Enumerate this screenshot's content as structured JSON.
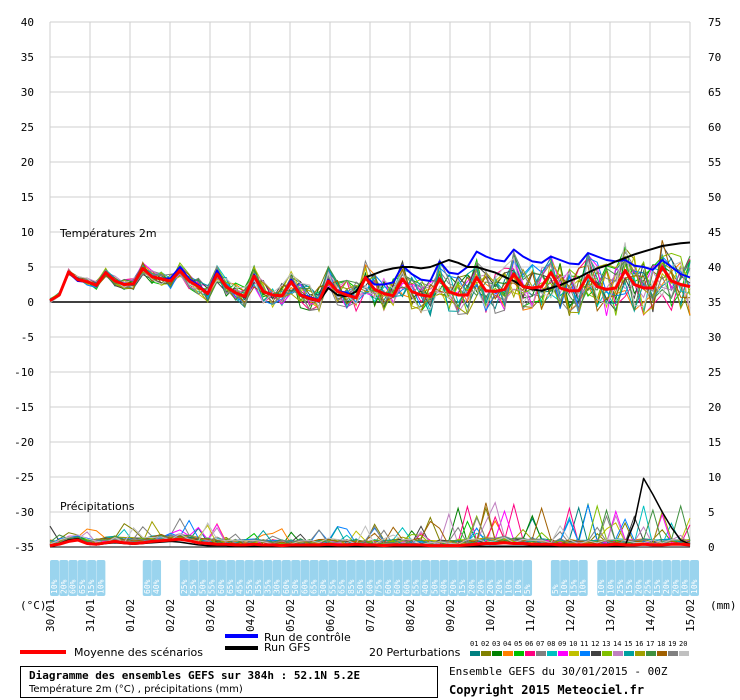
{
  "chart_data": {
    "type": "line",
    "title": "Diagramme des ensembles GEFS sur 384h : 52.1N 5.2E",
    "subtitle": "Température 2m (°C) , précipitations (mm)",
    "run_label": "Ensemble GEFS du 30/01/2015 - 00Z",
    "copyright": "Copyright 2015 Meteociel.fr",
    "panel_temp_label": "Températures 2m",
    "panel_precip_label": "Précipitations",
    "ylabel_left": "(°C)",
    "ylabel_right": "(mm)",
    "ylim_left": [
      -35,
      40
    ],
    "ylim_right": [
      0,
      75
    ],
    "y_ticks_left": [
      "40",
      "35",
      "30",
      "25",
      "20",
      "15",
      "10",
      "5",
      "0",
      "-5",
      "-10",
      "-15",
      "-20",
      "-25",
      "-30",
      "-35"
    ],
    "y_ticks_right": [
      "75",
      "70",
      "65",
      "60",
      "55",
      "50",
      "45",
      "40",
      "35",
      "30",
      "25",
      "20",
      "15",
      "10",
      "5",
      "0"
    ],
    "x_dates": [
      "30/01",
      "31/01",
      "01/02",
      "02/02",
      "03/02",
      "04/02",
      "05/02",
      "06/02",
      "07/02",
      "08/02",
      "09/02",
      "10/02",
      "11/02",
      "12/02",
      "13/02",
      "14/02",
      "15/02"
    ],
    "x_hours_step": 6,
    "snow_probabilities": [
      "10%",
      "20%",
      "60%",
      "65%",
      "15%",
      "10%",
      "",
      "",
      "",
      "",
      "60%",
      "40%",
      "",
      "",
      "25%",
      "25%",
      "50%",
      "55%",
      "60%",
      "65%",
      "45%",
      "55%",
      "35%",
      "35%",
      "30%",
      "60%",
      "50%",
      "60%",
      "65%",
      "30%",
      "55%",
      "65%",
      "85%",
      "50%",
      "60%",
      "75%",
      "60%",
      "60%",
      "60%",
      "55%",
      "40%",
      "50%",
      "40%",
      "20%",
      "15%",
      "20%",
      "20%",
      "20%",
      "20%",
      "10%",
      "10%",
      "5%",
      "",
      "",
      "5%",
      "10%",
      "15%",
      "10%",
      "",
      "10%",
      "10%",
      "25%",
      "15%",
      "20%",
      "25%",
      "15%",
      "20%",
      "20%",
      "10%",
      "10%"
    ],
    "legend": {
      "mean": "Moyenne des scénarios",
      "control": "Run de contrôle",
      "gfs": "Run GFS",
      "perturbations": "20 Perturbations",
      "perturbation_ids": [
        "01",
        "02",
        "03",
        "04",
        "05",
        "06",
        "07",
        "08",
        "09",
        "10",
        "11",
        "12",
        "13",
        "14",
        "15",
        "16",
        "17",
        "18",
        "19",
        "20"
      ]
    },
    "colors": {
      "mean": "#ff0000",
      "control": "#0000ff",
      "gfs": "#000000",
      "perturbations": [
        "#008080",
        "#808000",
        "#008000",
        "#ff8000",
        "#00c000",
        "#ff0080",
        "#808080",
        "#00c0c0",
        "#ff00ff",
        "#c0c000",
        "#0080ff",
        "#404040",
        "#80c000",
        "#c080c0",
        "#00a0a0",
        "#a0a000",
        "#409040",
        "#a06000",
        "#808080",
        "#c0c0c0"
      ]
    },
    "series_temp": {
      "mean": [
        0.2,
        1.0,
        4.3,
        3.2,
        2.9,
        2.4,
        4.2,
        3.0,
        2.5,
        2.6,
        4.8,
        3.6,
        3.3,
        3.0,
        4.5,
        3.0,
        2.2,
        1.2,
        4.0,
        2.2,
        1.3,
        0.8,
        3.7,
        1.5,
        1.0,
        0.9,
        2.9,
        1.0,
        0.5,
        0.2,
        3.0,
        1.5,
        1.0,
        0.6,
        3.5,
        1.8,
        1.2,
        0.9,
        3.3,
        1.5,
        1.0,
        0.8,
        3.3,
        1.5,
        1.0,
        1.0,
        3.5,
        1.6,
        1.5,
        1.8,
        4.0,
        2.2,
        2.0,
        2.2,
        4.2,
        2.0,
        1.6,
        1.6,
        3.8,
        2.2,
        1.8,
        2.0,
        4.5,
        2.5,
        2.0,
        2.0,
        5.0,
        3.0,
        2.5,
        2.2
      ],
      "control": [
        0.2,
        1.0,
        4.2,
        3.0,
        2.9,
        2.3,
        4.3,
        3.0,
        2.6,
        2.5,
        4.8,
        3.7,
        3.3,
        3.4,
        5.0,
        3.3,
        2.4,
        1.3,
        4.5,
        2.2,
        1.4,
        0.7,
        3.9,
        1.5,
        1.0,
        0.9,
        3.2,
        1.1,
        0.7,
        0.3,
        3.2,
        1.6,
        1.3,
        0.6,
        3.6,
        2.5,
        2.5,
        2.8,
        5.2,
        4.0,
        3.2,
        3.0,
        5.8,
        4.2,
        4.0,
        5.0,
        7.2,
        6.5,
        6.0,
        5.8,
        7.5,
        6.5,
        5.8,
        5.6,
        6.5,
        6.0,
        5.5,
        5.4,
        7.0,
        6.5,
        6.0,
        5.8,
        6.0,
        5.2,
        5.0,
        4.6,
        6.0,
        5.0,
        4.0,
        3.5
      ],
      "gfs": [
        0.2,
        1.0,
        4.3,
        3.3,
        2.9,
        2.4,
        4.2,
        3.0,
        2.5,
        2.5,
        4.7,
        3.6,
        3.2,
        3.0,
        4.4,
        3.0,
        2.2,
        1.2,
        3.9,
        2.1,
        1.3,
        0.7,
        3.6,
        1.4,
        1.0,
        0.8,
        2.8,
        0.9,
        0.4,
        0.1,
        2.0,
        1.0,
        0.8,
        1.5,
        3.5,
        4.0,
        4.5,
        4.8,
        5.0,
        5.0,
        4.8,
        5.0,
        5.5,
        6.0,
        5.6,
        5.0,
        5.0,
        4.6,
        4.2,
        3.6,
        3.0,
        2.2,
        1.8,
        1.6,
        2.0,
        2.4,
        3.0,
        3.5,
        4.2,
        4.8,
        5.2,
        5.8,
        6.3,
        6.8,
        7.2,
        7.6,
        8.0,
        8.2,
        8.4,
        8.5
      ]
    },
    "series_precip_mm": {
      "mean": [
        0.2,
        0.4,
        0.8,
        1.0,
        0.5,
        0.4,
        0.6,
        0.8,
        0.6,
        0.5,
        0.6,
        0.8,
        0.9,
        1.0,
        1.1,
        0.9,
        0.6,
        0.5,
        0.4,
        0.4,
        0.3,
        0.3,
        0.4,
        0.3,
        0.3,
        0.2,
        0.3,
        0.3,
        0.3,
        0.3,
        0.4,
        0.3,
        0.3,
        0.4,
        0.3,
        0.3,
        0.2,
        0.3,
        0.3,
        0.3,
        0.3,
        0.2,
        0.2,
        0.2,
        0.2,
        0.3,
        0.4,
        0.5,
        0.5,
        0.6,
        0.5,
        0.5,
        0.4,
        0.4,
        0.4,
        0.3,
        0.3,
        0.3,
        0.3,
        0.3,
        0.3,
        0.4,
        0.3,
        0.3,
        0.4,
        0.3,
        0.3,
        0.4,
        0.4,
        0.3
      ],
      "gfs": [
        0.2,
        0.5,
        1.0,
        1.2,
        0.5,
        0.3,
        0.5,
        0.6,
        0.5,
        0.4,
        0.5,
        0.6,
        0.7,
        0.8,
        0.7,
        0.5,
        0.3,
        0.2,
        0.2,
        0.2,
        0.1,
        0.1,
        0.1,
        0.1,
        0.1,
        0.1,
        0.1,
        0.1,
        0.1,
        0.1,
        0.1,
        0.1,
        0.1,
        0.1,
        0.1,
        0.1,
        0.1,
        0.1,
        0.1,
        0.1,
        0.1,
        0.1,
        0.1,
        0.1,
        0.1,
        0.1,
        0.1,
        0.1,
        0.1,
        0.1,
        0.1,
        0.1,
        0.1,
        0.1,
        0.1,
        0.1,
        0.1,
        0.1,
        0.1,
        0.1,
        0.1,
        0.1,
        0.2,
        3.5,
        9.8,
        7.5,
        5.0,
        2.8,
        1.0,
        0.4
      ]
    }
  }
}
